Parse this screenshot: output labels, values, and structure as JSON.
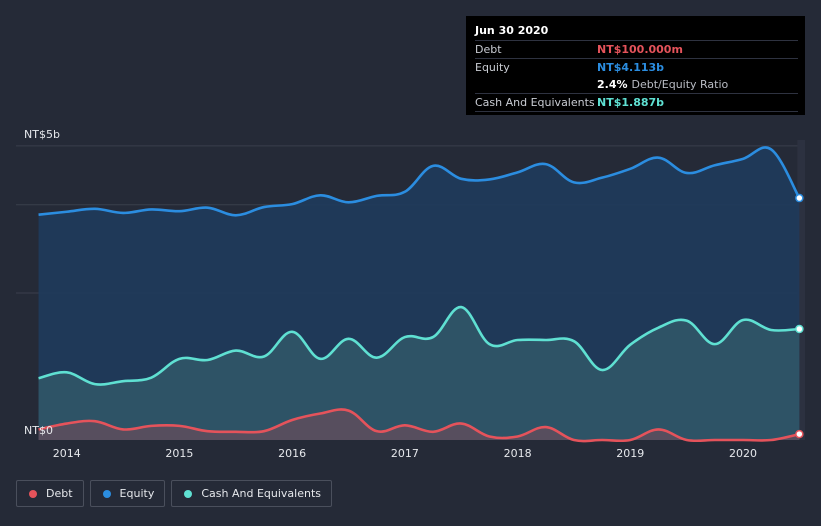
{
  "tooltip": {
    "date": "Jun 30 2020",
    "debt_label": "Debt",
    "debt_value": "NT$100.000m",
    "equity_label": "Equity",
    "equity_value": "NT$4.113b",
    "ratio_value": "2.4%",
    "ratio_label": "Debt/Equity Ratio",
    "cash_label": "Cash And Equivalents",
    "cash_value": "NT$1.887b"
  },
  "legend": [
    {
      "label": "Debt",
      "color": "#e5535b"
    },
    {
      "label": "Equity",
      "color": "#2b8de0"
    },
    {
      "label": "Cash And Equivalents",
      "color": "#5fe0d2"
    }
  ],
  "chart_data": {
    "type": "area",
    "y_unit": "NT$",
    "ylim": [
      0,
      5.1
    ],
    "y_ticks": [
      {
        "value": 5,
        "label": "NT$5b"
      },
      {
        "value": 0,
        "label": "NT$0"
      }
    ],
    "xlim": [
      2013.55,
      2020.55
    ],
    "x_ticks": [
      "2014",
      "2015",
      "2016",
      "2017",
      "2018",
      "2019",
      "2020"
    ],
    "legend_position": "bottom-left",
    "colors": {
      "debt": "#e5535b",
      "equity": "#2b8de0",
      "cash": "#5fe0d2"
    },
    "series": [
      {
        "name": "Equity",
        "x": [
          2013.75,
          2014.0,
          2014.25,
          2014.5,
          2014.75,
          2015.0,
          2015.25,
          2015.5,
          2015.75,
          2016.0,
          2016.25,
          2016.5,
          2016.75,
          2017.0,
          2017.25,
          2017.5,
          2017.75,
          2018.0,
          2018.25,
          2018.5,
          2018.75,
          2019.0,
          2019.25,
          2019.5,
          2019.75,
          2020.0,
          2020.25,
          2020.5
        ],
        "values": [
          3.83,
          3.88,
          3.93,
          3.86,
          3.92,
          3.89,
          3.95,
          3.82,
          3.96,
          4.01,
          4.16,
          4.04,
          4.15,
          4.22,
          4.66,
          4.44,
          4.43,
          4.55,
          4.69,
          4.38,
          4.46,
          4.61,
          4.8,
          4.54,
          4.67,
          4.78,
          4.94,
          4.113
        ]
      },
      {
        "name": "Cash And Equivalents",
        "x": [
          2013.75,
          2014.0,
          2014.25,
          2014.5,
          2014.75,
          2015.0,
          2015.25,
          2015.5,
          2015.75,
          2016.0,
          2016.25,
          2016.5,
          2016.75,
          2017.0,
          2017.25,
          2017.5,
          2017.75,
          2018.0,
          2018.25,
          2018.5,
          2018.75,
          2019.0,
          2019.25,
          2019.5,
          2019.75,
          2020.0,
          2020.25,
          2020.5
        ],
        "values": [
          1.05,
          1.15,
          0.95,
          1.0,
          1.06,
          1.38,
          1.36,
          1.52,
          1.42,
          1.84,
          1.38,
          1.72,
          1.4,
          1.75,
          1.75,
          2.26,
          1.63,
          1.7,
          1.7,
          1.68,
          1.19,
          1.62,
          1.91,
          2.03,
          1.63,
          2.04,
          1.87,
          1.887
        ]
      },
      {
        "name": "Debt",
        "x": [
          2013.75,
          2014.0,
          2014.25,
          2014.5,
          2014.75,
          2015.0,
          2015.25,
          2015.5,
          2015.75,
          2016.0,
          2016.25,
          2016.5,
          2016.75,
          2017.0,
          2017.25,
          2017.5,
          2017.75,
          2018.0,
          2018.25,
          2018.5,
          2018.75,
          2019.0,
          2019.25,
          2019.5,
          2019.75,
          2020.0,
          2020.25,
          2020.5
        ],
        "values": [
          0.18,
          0.28,
          0.32,
          0.18,
          0.24,
          0.24,
          0.15,
          0.14,
          0.15,
          0.34,
          0.45,
          0.5,
          0.15,
          0.25,
          0.14,
          0.28,
          0.06,
          0.06,
          0.22,
          0.0,
          0.0,
          0.0,
          0.18,
          0.0,
          0.0,
          0.0,
          0.0,
          0.1
        ]
      }
    ]
  }
}
